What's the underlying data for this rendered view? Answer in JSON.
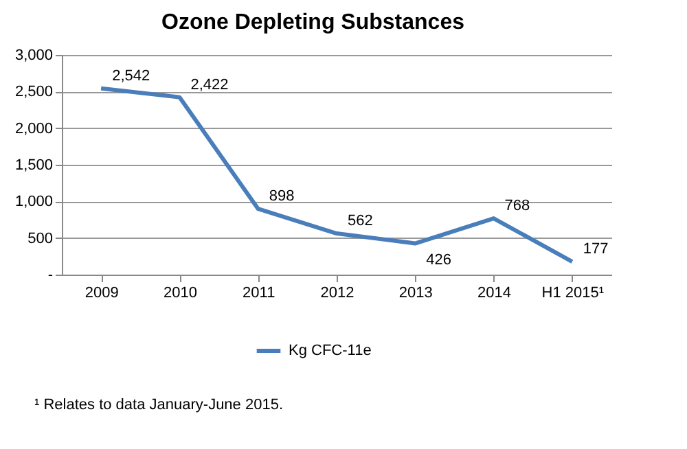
{
  "chart_data": {
    "type": "line",
    "title": "Ozone Depleting Substances",
    "categories": [
      "2009",
      "2010",
      "2011",
      "2012",
      "2013",
      "2014",
      "H1 2015¹"
    ],
    "series": [
      {
        "name": "Kg CFC-11e",
        "color": "#4a7ebb",
        "values": [
          2542,
          2422,
          898,
          562,
          426,
          768,
          177
        ],
        "value_labels": [
          "2,542",
          "2,422",
          "898",
          "562",
          "426",
          "768",
          "177"
        ]
      }
    ],
    "ylim": [
      0,
      3000
    ],
    "yticks": [
      {
        "value": 0,
        "label": "-"
      },
      500,
      {
        "value": 1000,
        "label": "1,000"
      },
      {
        "value": 1500,
        "label": "1,500"
      },
      {
        "value": 2000,
        "label": "2,000"
      },
      {
        "value": 2500,
        "label": "2,500"
      },
      {
        "value": 3000,
        "label": "3,000"
      }
    ],
    "grid": "y",
    "legend": "bottom",
    "marker": "none",
    "line_style": "solid",
    "annotations": [
      "¹ Relates to data January-June 2015."
    ]
  }
}
